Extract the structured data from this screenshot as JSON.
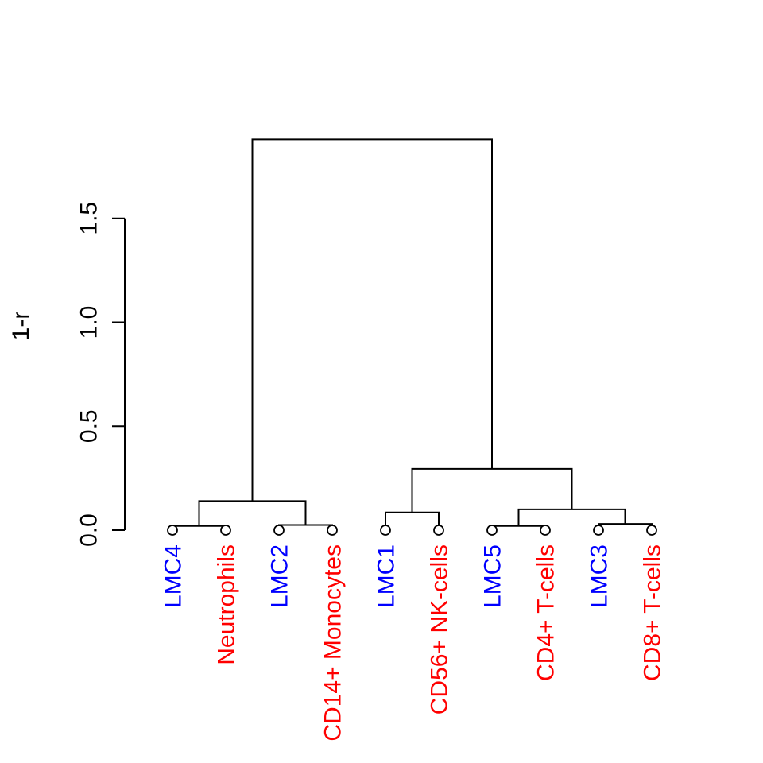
{
  "chart_data": {
    "type": "dendrogram",
    "ylabel": "1-r",
    "ylim": [
      0,
      1.9
    ],
    "yticks": [
      "0.0",
      "0.5",
      "1.0",
      "1.5"
    ],
    "yticks_values": [
      0.0,
      0.5,
      1.0,
      1.5
    ],
    "grid": false,
    "label_colors": {
      "LMC": "#0000ff",
      "reference": "#ff0000"
    },
    "leaves": [
      {
        "label": "LMC4",
        "group": "LMC"
      },
      {
        "label": "Neutrophils",
        "group": "reference"
      },
      {
        "label": "LMC2",
        "group": "LMC"
      },
      {
        "label": "CD14+ Monocytes",
        "group": "reference"
      },
      {
        "label": "LMC1",
        "group": "LMC"
      },
      {
        "label": "CD56+ NK-cells",
        "group": "reference"
      },
      {
        "label": "LMC5",
        "group": "LMC"
      },
      {
        "label": "CD4+ T-cells",
        "group": "reference"
      },
      {
        "label": "LMC3",
        "group": "LMC"
      },
      {
        "label": "CD8+ T-cells",
        "group": "reference"
      }
    ],
    "merges": [
      {
        "left": "leaf:0",
        "right": "leaf:1",
        "height": 0.02
      },
      {
        "left": "leaf:2",
        "right": "leaf:3",
        "height": 0.025
      },
      {
        "left": "node:0",
        "right": "node:1",
        "height": 0.14
      },
      {
        "left": "leaf:4",
        "right": "leaf:5",
        "height": 0.085
      },
      {
        "left": "leaf:6",
        "right": "leaf:7",
        "height": 0.02
      },
      {
        "left": "leaf:8",
        "right": "leaf:9",
        "height": 0.03
      },
      {
        "left": "node:4",
        "right": "node:5",
        "height": 0.1
      },
      {
        "left": "node:3",
        "right": "node:6",
        "height": 0.295
      },
      {
        "left": "node:2",
        "right": "node:7",
        "height": 1.88
      }
    ]
  }
}
